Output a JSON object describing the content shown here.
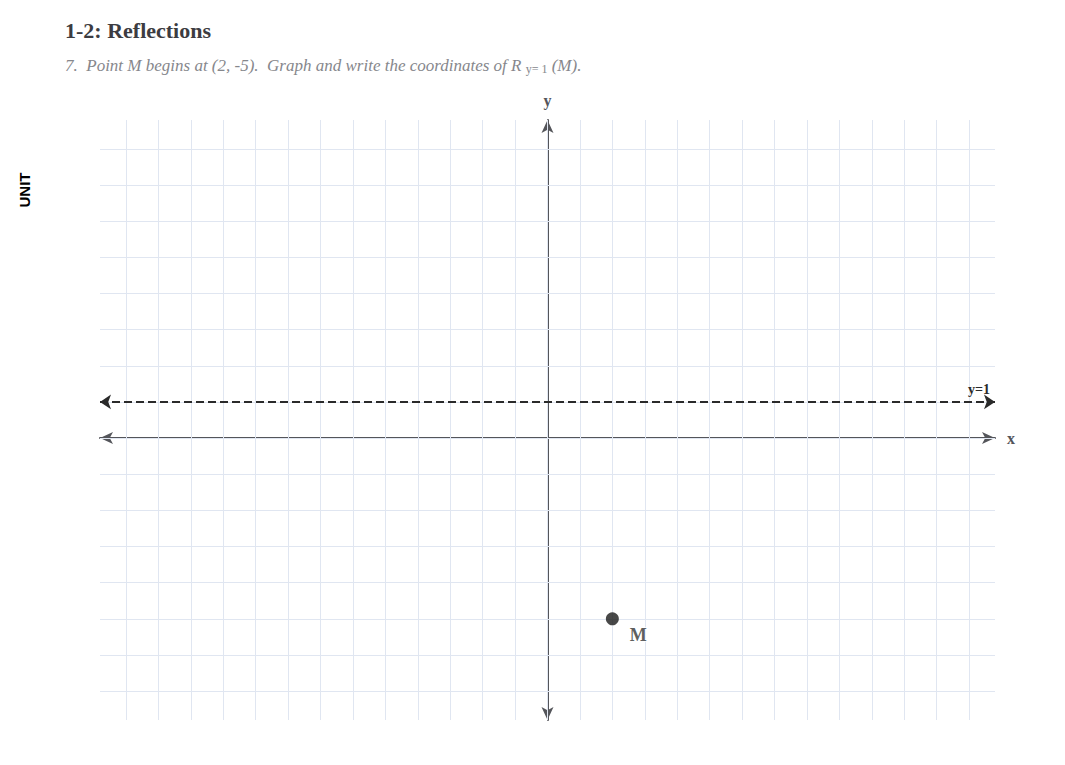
{
  "chart_data": {
    "type": "scatter",
    "title": "1-2: Reflections",
    "subtitle": "7.  Point M begins at (2, -5).  Graph and write the coordinates of R",
    "subtitle_subscript": "y= 1",
    "subtitle_end": "(M).",
    "side_label": "UNIT",
    "x_label": "x",
    "y_label": "y",
    "series": [
      {
        "type": "scatter",
        "x": [
          2
        ],
        "values": [
          -5
        ],
        "point_labels": [
          "M"
        ],
        "color": "#1a1a1a",
        "marker": "circle"
      }
    ],
    "reference_lines": [
      {
        "y": 1,
        "label": "y=1",
        "line_style": "dashed",
        "color": "#2a2a2a"
      }
    ],
    "xlim": [
      -13.8,
      13.8
    ],
    "ylim": [
      -7.8,
      8.8
    ],
    "xticks": [
      -13,
      -12,
      -11,
      -10,
      -9,
      -8,
      -7,
      -6,
      -5,
      -4,
      -3,
      -2,
      -1,
      0,
      1,
      2,
      3,
      4,
      5,
      6,
      7,
      8,
      9,
      10,
      11,
      12,
      13
    ],
    "yticks": [
      -7,
      -6,
      -5,
      -4,
      -3,
      -2,
      -1,
      0,
      1,
      2,
      3,
      4,
      5,
      6,
      7,
      8
    ],
    "grid": true,
    "tick_labels": false
  }
}
